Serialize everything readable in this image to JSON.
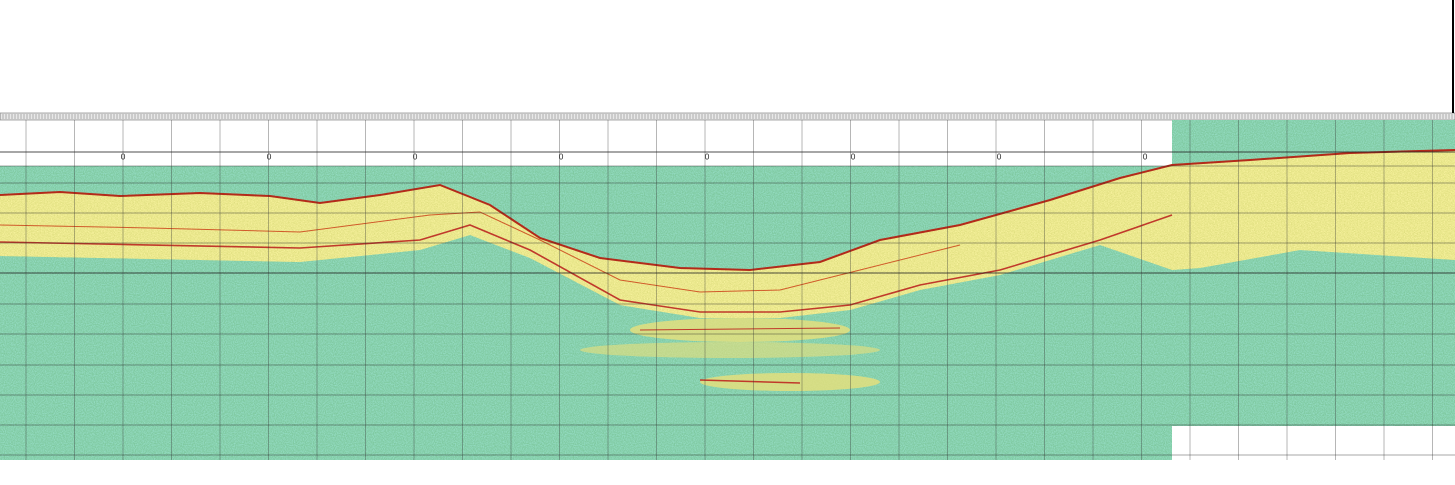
{
  "section_labels": [
    "0",
    "0",
    "0",
    "0",
    "0",
    "0",
    "0",
    "0"
  ]
}
